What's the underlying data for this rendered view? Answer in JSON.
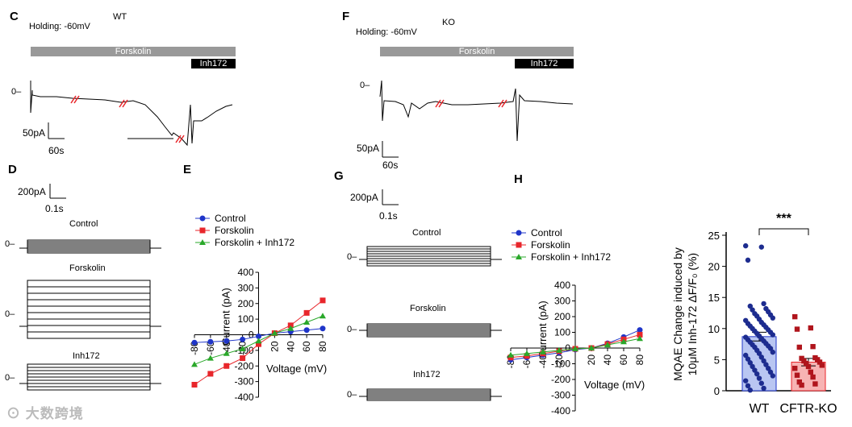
{
  "panelC": {
    "letter": "C",
    "holding": "Holding: -60mV",
    "genotype": "WT",
    "drug_bar": "Forskolin",
    "inh_bar": "Inh172",
    "zero": "0",
    "scale_y": "50pA",
    "scale_x": "60s"
  },
  "panelF": {
    "letter": "F",
    "holding": "Holding: -60mV",
    "genotype": "KO",
    "drug_bar": "Forskolin",
    "inh_bar": "Inh172",
    "zero": "0",
    "scale_y": "50pA",
    "scale_x": "60s"
  },
  "panelD": {
    "letter": "D",
    "scale_y": "200pA",
    "scale_x": "0.1s",
    "zero": "0",
    "labels": [
      "Control",
      "Forskolin",
      "Inh172"
    ]
  },
  "panelG": {
    "letter": "G",
    "scale_y": "200pA",
    "scale_x": "0.1s",
    "zero": "0",
    "labels": [
      "Control",
      "Forskolin",
      "Inh172"
    ]
  },
  "colors": {
    "control": "#1f35c9",
    "forskolin": "#e8262b",
    "inh": "#2aa82a",
    "bar_wt": "#b9c6f2",
    "bar_ko": "#f7b3b3",
    "dot_wt": "#1d2c8f",
    "dot_ko": "#b0151c"
  },
  "chart_data": [
    {
      "id": "E",
      "type": "line",
      "letter": "E",
      "xlabel": "Voltage (mV)",
      "ylabel": "Current (pA)",
      "x": [
        -80,
        -60,
        -40,
        -20,
        0,
        20,
        40,
        60,
        80
      ],
      "xticks": [
        "-80",
        "-60",
        "-40",
        "-20",
        "0",
        "20",
        "40",
        "60",
        "80"
      ],
      "yticks": [
        "400",
        "300",
        "200",
        "100",
        "0",
        "-100",
        "-200",
        "-300",
        "-400"
      ],
      "ylim": [
        -400,
        400
      ],
      "series": [
        {
          "name": "Control",
          "color": "#1f35c9",
          "marker": "circle",
          "values": [
            -50,
            -45,
            -40,
            -30,
            -10,
            10,
            20,
            30,
            40
          ]
        },
        {
          "name": "Forskolin",
          "color": "#e8262b",
          "marker": "square",
          "values": [
            -320,
            -250,
            -200,
            -150,
            -60,
            10,
            60,
            140,
            220
          ]
        },
        {
          "name": "Forskolin + Inh172",
          "color": "#2aa82a",
          "marker": "triangle",
          "values": [
            -190,
            -150,
            -120,
            -90,
            -40,
            10,
            40,
            80,
            120
          ]
        }
      ]
    },
    {
      "id": "H",
      "type": "line",
      "letter": "H",
      "xlabel": "Voltage (mV)",
      "ylabel": "Current (pA)",
      "x": [
        -80,
        -60,
        -40,
        -20,
        0,
        20,
        40,
        60,
        80
      ],
      "xticks": [
        "-80",
        "-60",
        "-40",
        "-20",
        "0",
        "20",
        "40",
        "60",
        "80"
      ],
      "yticks": [
        "400",
        "300",
        "200",
        "100",
        "0",
        "-100",
        "-200",
        "-300",
        "-400"
      ],
      "ylim": [
        -400,
        400
      ],
      "series": [
        {
          "name": "Control",
          "color": "#1f35c9",
          "marker": "circle",
          "values": [
            -75,
            -60,
            -45,
            -30,
            -10,
            0,
            30,
            70,
            115
          ]
        },
        {
          "name": "Forskolin",
          "color": "#e8262b",
          "marker": "square",
          "values": [
            -60,
            -50,
            -35,
            -20,
            -5,
            0,
            25,
            55,
            85
          ]
        },
        {
          "name": "Forskolin + Inh172",
          "color": "#2aa82a",
          "marker": "triangle",
          "values": [
            -45,
            -35,
            -25,
            -15,
            -5,
            0,
            20,
            40,
            60
          ]
        }
      ]
    },
    {
      "id": "MQAE",
      "type": "bar",
      "ylabel": "MQAE Change induced by 10μM Inh-172 ΔF/F₀ (%)",
      "categories": [
        "WT",
        "CFTR-KO"
      ],
      "values": [
        8.7,
        4.6
      ],
      "errors": [
        0.7,
        0.6
      ],
      "yticks": [
        "25",
        "20",
        "15",
        "10",
        "5",
        "0"
      ],
      "ylim": [
        0,
        25
      ],
      "significance": "***",
      "points": [
        [
          23.3,
          23.1,
          21.0,
          14.0,
          13.6,
          13.2,
          13.0,
          12.7,
          12.4,
          12.2,
          12.0,
          11.7,
          11.5,
          11.3,
          11.0,
          10.8,
          10.6,
          10.4,
          10.2,
          10.0,
          9.8,
          9.6,
          9.4,
          9.2,
          9.0,
          8.8,
          8.6,
          8.4,
          8.2,
          8.0,
          7.8,
          7.6,
          7.4,
          7.2,
          7.0,
          6.8,
          6.5,
          6.2,
          6.0,
          5.7,
          5.4,
          5.1,
          4.8,
          4.5,
          4.2,
          3.9,
          3.6,
          3.3,
          3.0,
          2.7,
          2.4,
          2.0,
          1.6,
          1.2,
          0.8,
          0.4,
          0.1
        ],
        [
          11.9,
          10.1,
          9.9,
          7.1,
          7.0,
          5.3,
          5.2,
          5.0,
          4.8,
          4.6,
          4.4,
          4.1,
          3.9,
          3.6,
          3.0,
          2.5,
          2.2,
          1.4,
          1.1,
          0.9
        ]
      ]
    }
  ],
  "watermark": "大数跨境"
}
